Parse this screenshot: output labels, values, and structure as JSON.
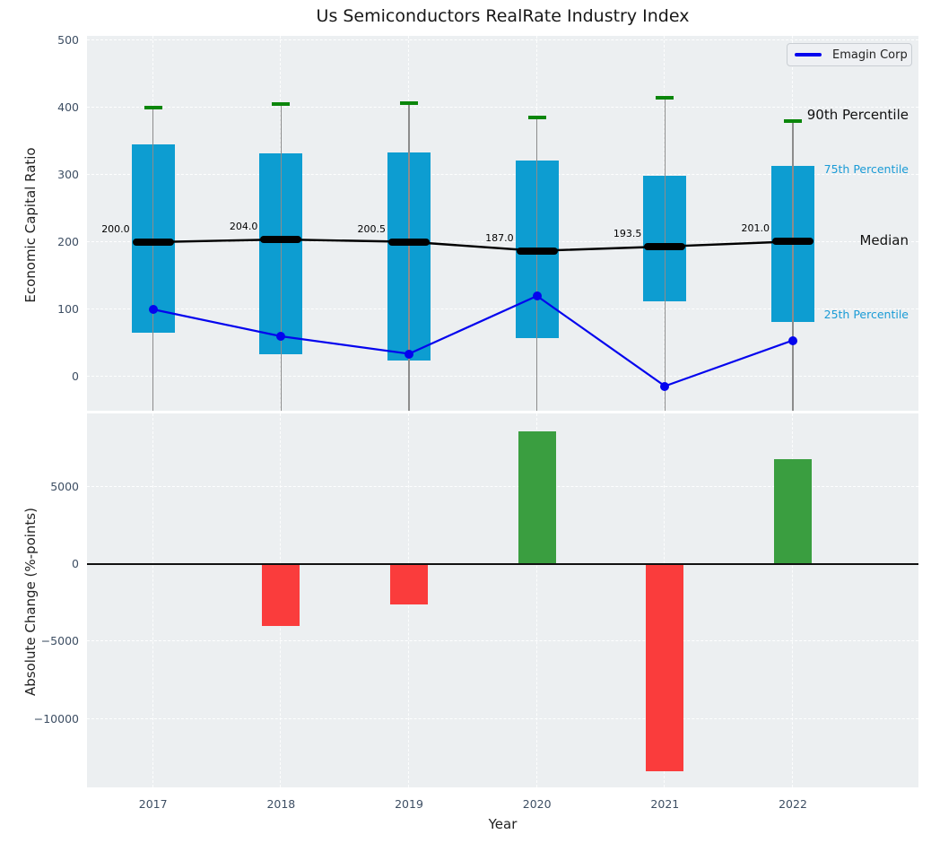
{
  "title": "Us Semiconductors RealRate Industry Index",
  "legend": {
    "label": "Emagin Corp"
  },
  "top_panel": {
    "ylabel": "Economic Capital Ratio",
    "yticks": [
      500,
      400,
      300,
      200,
      100,
      0
    ],
    "annotations": {
      "p90": "90th Percentile",
      "p75": "75th Percentile",
      "median": "Median",
      "p25": "25th Percentile"
    }
  },
  "bottom_panel": {
    "ylabel": "Absolute Change (%-points)",
    "yticks": [
      5000,
      0,
      -5000,
      -10000
    ],
    "xlabel": "Year"
  },
  "chart_data": [
    {
      "type": "box-line",
      "title": "Us Semiconductors RealRate Industry Index",
      "ylabel": "Economic Capital Ratio",
      "categories": [
        "2017",
        "2018",
        "2019",
        "2020",
        "2021",
        "2022"
      ],
      "ylim": [
        -55,
        510
      ],
      "grid": true,
      "legend_position": "upper right",
      "series": [
        {
          "name": "90th Percentile",
          "values": [
            400,
            405,
            407,
            385,
            415,
            380
          ]
        },
        {
          "name": "75th Percentile",
          "values": [
            345,
            332,
            334,
            322,
            299,
            314
          ]
        },
        {
          "name": "Median",
          "values": [
            200.0,
            204.0,
            200.5,
            187.0,
            193.5,
            201.0
          ]
        },
        {
          "name": "25th Percentile",
          "values": [
            65,
            34,
            24,
            57,
            112,
            82
          ]
        },
        {
          "name": "Emagin Corp",
          "values": [
            100,
            60,
            34,
            120,
            -14,
            54
          ]
        }
      ],
      "median_labels": [
        "200.0",
        "204.0",
        "200.5",
        "187.0",
        "193.5",
        "201.0"
      ]
    },
    {
      "type": "bar",
      "ylabel": "Absolute Change (%-points)",
      "xlabel": "Year",
      "categories": [
        "2017",
        "2018",
        "2019",
        "2020",
        "2021",
        "2022"
      ],
      "values": [
        null,
        -4000,
        -2600,
        8600,
        -13400,
        6800
      ],
      "ylim": [
        -14400,
        9700
      ],
      "grid": true
    }
  ],
  "colors": {
    "panel_bg": "#eceff1",
    "box": "#0d9dd1",
    "cap_green": "#0b860b",
    "median_black": "#000000",
    "emagin_blue": "#0404ee",
    "bar_positive": "#3a9e40",
    "bar_negative": "#fa3c3c",
    "whisker_gray": "#8c8c8c",
    "annotation_cyan": "#1a9bd6",
    "tick_text": "#3d4e63"
  }
}
